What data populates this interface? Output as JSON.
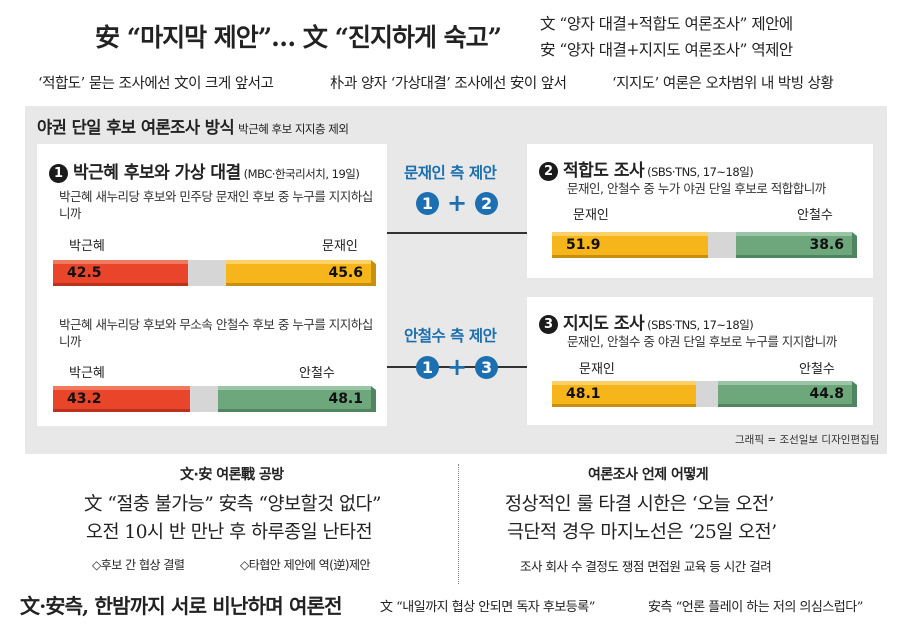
{
  "header": {
    "headline": "安 “마지막 제안”… 文 “진지하게 숙고”",
    "right_line1": "文 “양자 대결+적합도 여론조사” 제안에",
    "right_line2": "安 “양자 대결+지지도 여론조사” 역제안",
    "sub_left": "‘적합도’ 묻는 조사에선 文이 크게 앞서고",
    "sub_mid": "朴과 양자 ‘가상대결’ 조사에선 安이 앞서",
    "sub_right": "‘지지도’ 여론은 오차범위 내 박빙 상황"
  },
  "panel": {
    "title": "야권 단일 후보 여론조사 방식",
    "note": "박근혜 후보 지지층 제외",
    "credit": "그래픽 = 조선일보 디자인편집팀"
  },
  "card1": {
    "num": "1",
    "title": "박근혜 후보와 가상 대결",
    "source": "(MBC·한국리서치, 19일)",
    "q1": "박근혜 새누리당 후보와 민주당 문재인 후보 중 누구를 지지하십니까",
    "q2": "박근혜 새누리당 후보와 무소속 안철수 후보 중 누구를 지지하십니까"
  },
  "card2": {
    "num": "2",
    "title": "적합도 조사",
    "source": "(SBS·TNS, 17~18일)",
    "q": "문재인, 안철수 중 누가 야권 단일 후보로 적합합니까"
  },
  "card3": {
    "num": "3",
    "title": "지지도 조사",
    "source": "(SBS·TNS, 17~18일)",
    "q": "문재인, 안철수 중 야권 단일 후보로 누구를 지지합니까"
  },
  "proposal_moon": {
    "title": "문재인 측 제안",
    "a": "1",
    "b": "2",
    "plus": "+"
  },
  "proposal_ahn": {
    "title": "안철수 측 제안",
    "a": "1",
    "b": "3",
    "plus": "+"
  },
  "colors": {
    "red": "#e8452a",
    "yellow": "#f7b51c",
    "green": "#6fa77c",
    "gray": "#d6d6d6",
    "blue": "#1c6fb0"
  },
  "chart_data": [
    {
      "type": "bar",
      "stacked": true,
      "series": [
        {
          "name": "박근혜",
          "value": 42.5,
          "color": "red"
        },
        {
          "name": "문재인",
          "value": 45.6,
          "color": "yellow"
        }
      ]
    },
    {
      "type": "bar",
      "stacked": true,
      "series": [
        {
          "name": "박근혜",
          "value": 43.2,
          "color": "red"
        },
        {
          "name": "안철수",
          "value": 48.1,
          "color": "green"
        }
      ]
    },
    {
      "type": "bar",
      "stacked": true,
      "series": [
        {
          "name": "문재인",
          "value": 51.9,
          "color": "yellow"
        },
        {
          "name": "안철수",
          "value": 38.6,
          "color": "green"
        }
      ]
    },
    {
      "type": "bar",
      "stacked": true,
      "series": [
        {
          "name": "문재인",
          "value": 48.1,
          "color": "yellow"
        },
        {
          "name": "안철수",
          "value": 44.8,
          "color": "green"
        }
      ]
    }
  ],
  "left_section": {
    "title": "文·安 여론戰 공방",
    "line1": "文 “절충 불가능” 安측 “양보할것 없다”",
    "line2": "오전 10시 반 만난 후 하루종일 난타전",
    "note1": "◇후보 간 협상 결렬",
    "note2": "◇타협안 제안에 역(逆)제안"
  },
  "right_section": {
    "title": "여론조사 언제 어떻게",
    "line1": "정상적인 룰 타결 시한은 ‘오늘 오전’",
    "line2": "극단적 경우 마지노선은 ‘25일 오전’",
    "note": "조사 회사 수 결정도 쟁점  면접원 교육 등 시간 걸려"
  },
  "footer": {
    "big": "文·安측, 한밤까지 서로 비난하며 여론전",
    "quote1": "文 “내일까지 협상 안되면 독자 후보등록”",
    "quote2": "安측 “언론 플레이 하는 저의 의심스럽다”"
  }
}
